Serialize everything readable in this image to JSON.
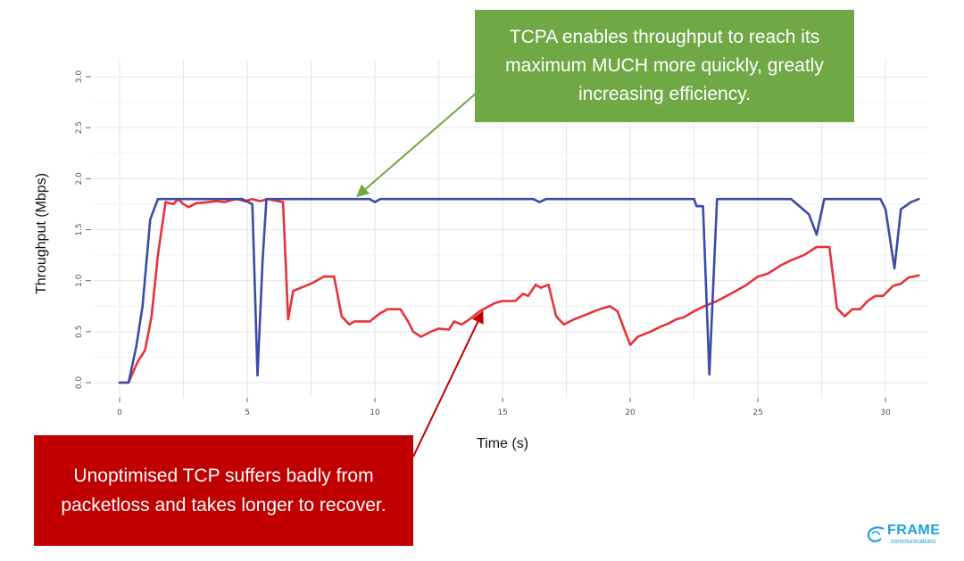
{
  "chart_data": {
    "type": "line",
    "xlabel": "Time (s)",
    "ylabel": "Throughput (Mbps)",
    "xlim": [
      0,
      31.5
    ],
    "ylim": [
      0,
      3.0
    ],
    "x_ticks": [
      0,
      5,
      10,
      15,
      20,
      25,
      30
    ],
    "y_ticks": [
      "0.0",
      "0.5",
      "1.0",
      "1.5",
      "2.0",
      "2.5",
      "3.0"
    ],
    "grid": true,
    "series": [
      {
        "color": "#3c4aa8",
        "points": [
          [
            0,
            0
          ],
          [
            0.35,
            0
          ],
          [
            0.65,
            0.35
          ],
          [
            0.9,
            0.75
          ],
          [
            1.2,
            1.6
          ],
          [
            1.5,
            1.8
          ],
          [
            4.8,
            1.8
          ],
          [
            5.2,
            1.75
          ],
          [
            5.4,
            0.07
          ],
          [
            5.6,
            1.2
          ],
          [
            5.75,
            1.8
          ],
          [
            9.8,
            1.8
          ],
          [
            10.0,
            1.77
          ],
          [
            10.2,
            1.8
          ],
          [
            16.2,
            1.8
          ],
          [
            16.45,
            1.77
          ],
          [
            16.7,
            1.8
          ],
          [
            22.5,
            1.8
          ],
          [
            22.6,
            1.73
          ],
          [
            22.85,
            1.73
          ],
          [
            23.1,
            0.08
          ],
          [
            23.4,
            1.8
          ],
          [
            26.3,
            1.8
          ],
          [
            27.0,
            1.65
          ],
          [
            27.3,
            1.45
          ],
          [
            27.6,
            1.8
          ],
          [
            29.8,
            1.8
          ],
          [
            30.0,
            1.7
          ],
          [
            30.35,
            1.12
          ],
          [
            30.6,
            1.7
          ],
          [
            31.0,
            1.77
          ],
          [
            31.3,
            1.8
          ]
        ]
      },
      {
        "color": "#e8323a",
        "points": [
          [
            0,
            0
          ],
          [
            0.35,
            0
          ],
          [
            0.7,
            0.2
          ],
          [
            1.0,
            0.32
          ],
          [
            1.25,
            0.65
          ],
          [
            1.5,
            1.25
          ],
          [
            1.8,
            1.77
          ],
          [
            2.1,
            1.75
          ],
          [
            2.3,
            1.8
          ],
          [
            2.5,
            1.75
          ],
          [
            2.7,
            1.72
          ],
          [
            3.0,
            1.76
          ],
          [
            3.5,
            1.77
          ],
          [
            3.8,
            1.78
          ],
          [
            4.1,
            1.77
          ],
          [
            4.4,
            1.79
          ],
          [
            4.6,
            1.8
          ],
          [
            4.9,
            1.78
          ],
          [
            5.2,
            1.8
          ],
          [
            5.5,
            1.78
          ],
          [
            5.8,
            1.8
          ],
          [
            6.2,
            1.78
          ],
          [
            6.4,
            1.77
          ],
          [
            6.6,
            0.62
          ],
          [
            6.8,
            0.9
          ],
          [
            7.5,
            0.97
          ],
          [
            8.0,
            1.04
          ],
          [
            8.4,
            1.04
          ],
          [
            8.7,
            0.65
          ],
          [
            9.0,
            0.57
          ],
          [
            9.2,
            0.6
          ],
          [
            9.8,
            0.6
          ],
          [
            10.2,
            0.68
          ],
          [
            10.5,
            0.72
          ],
          [
            11.0,
            0.72
          ],
          [
            11.3,
            0.6
          ],
          [
            11.5,
            0.5
          ],
          [
            11.8,
            0.45
          ],
          [
            12.2,
            0.5
          ],
          [
            12.5,
            0.53
          ],
          [
            12.9,
            0.52
          ],
          [
            13.1,
            0.6
          ],
          [
            13.4,
            0.57
          ],
          [
            13.7,
            0.62
          ],
          [
            14.1,
            0.7
          ],
          [
            14.7,
            0.78
          ],
          [
            15.0,
            0.8
          ],
          [
            15.5,
            0.8
          ],
          [
            15.8,
            0.87
          ],
          [
            16.0,
            0.85
          ],
          [
            16.3,
            0.96
          ],
          [
            16.5,
            0.93
          ],
          [
            16.8,
            0.96
          ],
          [
            17.1,
            0.65
          ],
          [
            17.4,
            0.57
          ],
          [
            17.8,
            0.62
          ],
          [
            18.3,
            0.67
          ],
          [
            18.8,
            0.72
          ],
          [
            19.2,
            0.75
          ],
          [
            19.5,
            0.7
          ],
          [
            19.8,
            0.5
          ],
          [
            20.0,
            0.37
          ],
          [
            20.3,
            0.45
          ],
          [
            20.8,
            0.5
          ],
          [
            21.2,
            0.55
          ],
          [
            21.5,
            0.58
          ],
          [
            21.8,
            0.62
          ],
          [
            22.1,
            0.64
          ],
          [
            22.5,
            0.7
          ],
          [
            22.9,
            0.75
          ],
          [
            23.4,
            0.8
          ],
          [
            24.0,
            0.88
          ],
          [
            24.5,
            0.95
          ],
          [
            25.0,
            1.04
          ],
          [
            25.4,
            1.07
          ],
          [
            25.9,
            1.15
          ],
          [
            26.3,
            1.2
          ],
          [
            26.8,
            1.25
          ],
          [
            27.3,
            1.33
          ],
          [
            27.8,
            1.33
          ],
          [
            28.1,
            0.73
          ],
          [
            28.4,
            0.65
          ],
          [
            28.7,
            0.72
          ],
          [
            29.0,
            0.72
          ],
          [
            29.3,
            0.8
          ],
          [
            29.6,
            0.85
          ],
          [
            29.9,
            0.85
          ],
          [
            30.3,
            0.95
          ],
          [
            30.6,
            0.97
          ],
          [
            30.9,
            1.03
          ],
          [
            31.3,
            1.05
          ]
        ]
      }
    ]
  },
  "callouts": {
    "green": {
      "text": "TCPA enables throughput to reach its maximum MUCH more quickly, greatly increasing efficiency.",
      "color": "#6fa845",
      "target": [
        9.2,
        1.8
      ]
    },
    "red": {
      "text": "Unoptimised TCP suffers badly from packetloss and takes longer to recover.",
      "color": "#c00000",
      "target": [
        14.2,
        0.72
      ]
    }
  },
  "logo": {
    "word": "FRAME",
    "sub": "communications",
    "color": "#1aa3d9"
  }
}
